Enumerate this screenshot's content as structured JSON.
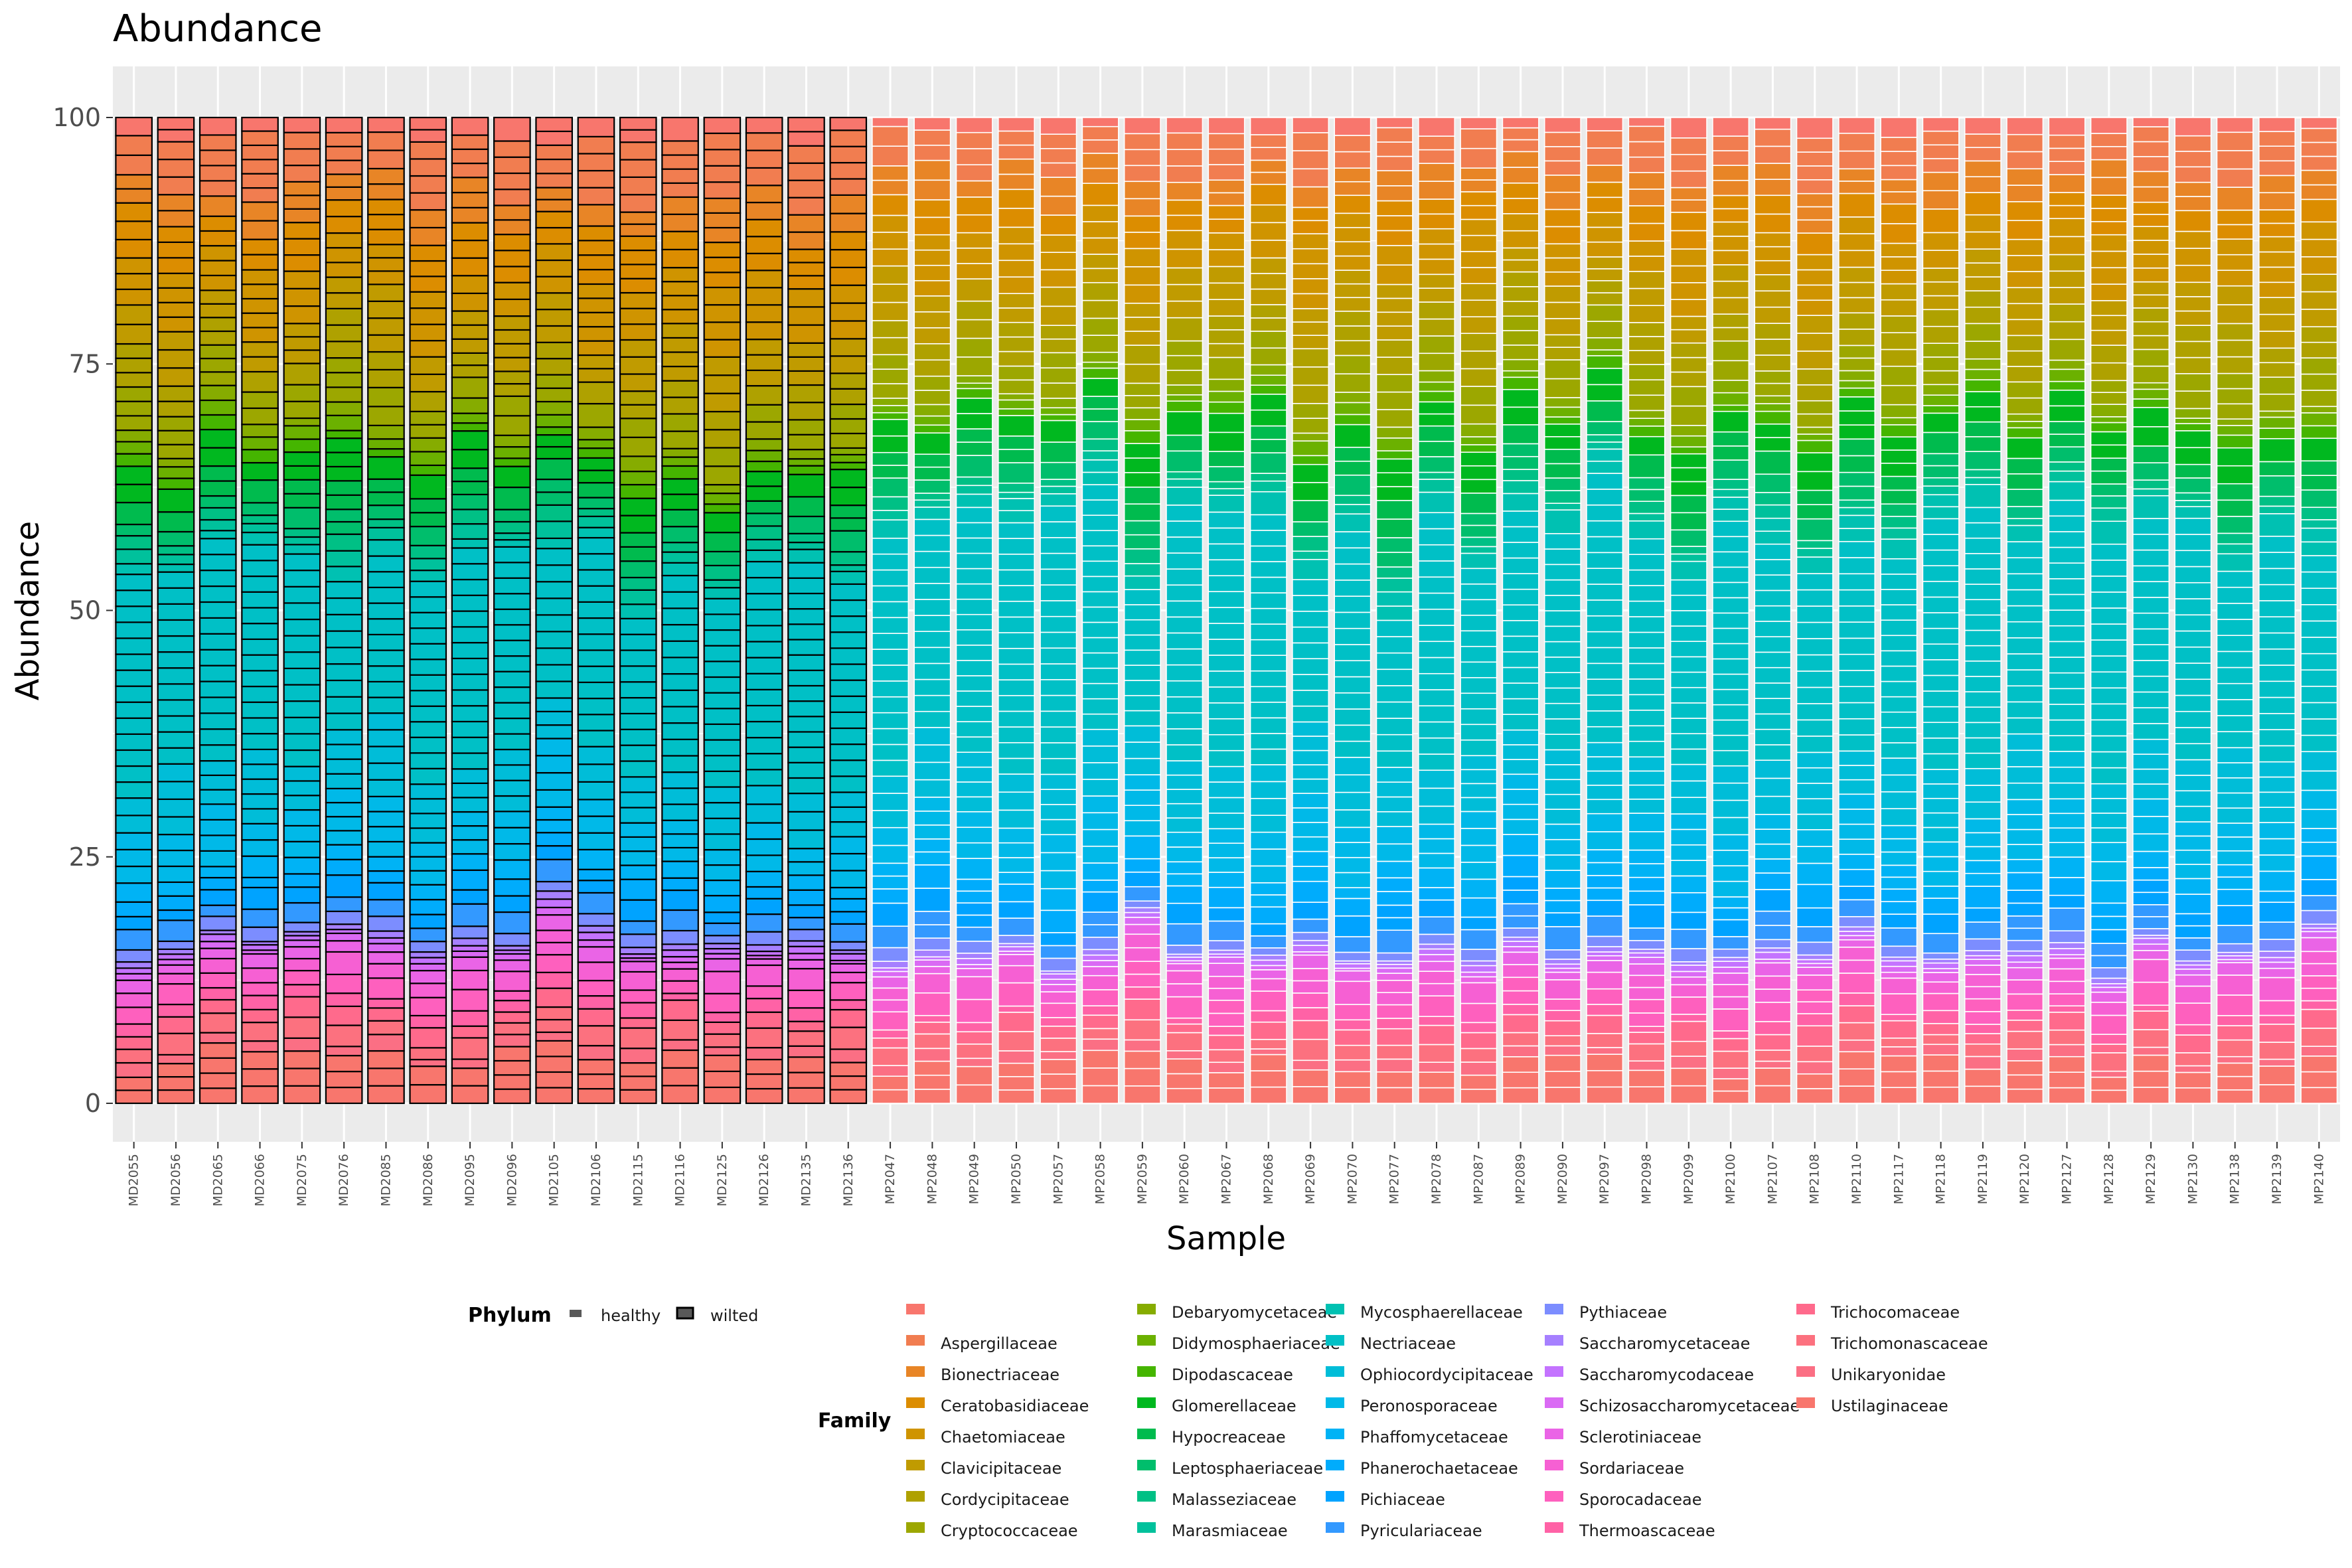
{
  "chart_data": {
    "type": "bar",
    "title": "Abundance",
    "xlabel": "Sample",
    "ylabel": "Abundance",
    "ylim": [
      0,
      100
    ],
    "yticks": [
      0,
      25,
      50,
      75,
      100
    ],
    "stacked": true,
    "grid": true,
    "legend_position": "bottom",
    "categories": [
      "MD2055",
      "MD2056",
      "MD2065",
      "MD2066",
      "MD2075",
      "MD2076",
      "MD2085",
      "MD2086",
      "MD2095",
      "MD2096",
      "MD2105",
      "MD2106",
      "MD2115",
      "MD2116",
      "MD2125",
      "MD2126",
      "MD2135",
      "MD2136",
      "MP2047",
      "MP2048",
      "MP2049",
      "MP2050",
      "MP2057",
      "MP2058",
      "MP2059",
      "MP2060",
      "MP2067",
      "MP2068",
      "MP2069",
      "MP2070",
      "MP2077",
      "MP2078",
      "MP2087",
      "MP2089",
      "MP2090",
      "MP2097",
      "MP2098",
      "MP2099",
      "MP2100",
      "MP2107",
      "MP2108",
      "MP2110",
      "MP2117",
      "MP2118",
      "MP2119",
      "MP2120",
      "MP2127",
      "MP2128",
      "MP2129",
      "MP2130",
      "MP2138",
      "MP2139",
      "MP2140"
    ],
    "phylum": [
      "wilted",
      "wilted",
      "wilted",
      "wilted",
      "wilted",
      "wilted",
      "wilted",
      "wilted",
      "wilted",
      "wilted",
      "wilted",
      "wilted",
      "wilted",
      "wilted",
      "wilted",
      "wilted",
      "wilted",
      "wilted",
      "healthy",
      "healthy",
      "healthy",
      "healthy",
      "healthy",
      "healthy",
      "healthy",
      "healthy",
      "healthy",
      "healthy",
      "healthy",
      "healthy",
      "healthy",
      "healthy",
      "healthy",
      "healthy",
      "healthy",
      "healthy",
      "healthy",
      "healthy",
      "healthy",
      "healthy",
      "healthy",
      "healthy",
      "healthy",
      "healthy",
      "healthy",
      "healthy",
      "healthy",
      "healthy",
      "healthy",
      "healthy",
      "healthy",
      "healthy",
      "healthy"
    ],
    "phylum_legend": {
      "title": "Phylum",
      "items": [
        "healthy",
        "wilted"
      ]
    },
    "family_legend": {
      "title": "Family",
      "items": [
        "",
        "Aspergillaceae",
        "Bionectriaceae",
        "Ceratobasidiaceae",
        "Chaetomiaceae",
        "Clavicipitaceae",
        "Cordycipitaceae",
        "Cryptococcaceae",
        "Debaryomycetaceae",
        "Didymosphaeriaceae",
        "Dipodascaceae",
        "Glomerellaceae",
        "Hypocreaceae",
        "Leptosphaeriaceae",
        "Malasseziaceae",
        "Marasmiaceae",
        "Mycosphaerellaceae",
        "Nectriaceae",
        "Ophiocordycipitaceae",
        "Peronosporaceae",
        "Phaffomycetaceae",
        "Phanerochaetaceae",
        "Pichiaceae",
        "Pyriculariaceae",
        "Pythiaceae",
        "Saccharomycetaceae",
        "Saccharomycodaceae",
        "Schizosaccharomycetaceae",
        "Sclerotiniaceae",
        "Sordariaceae",
        "Sporocadaceae",
        "Thermoascaceae",
        "Trichocomaceae",
        "Trichomonascaceae",
        "Unikaryonidae",
        "Ustilaginaceae"
      ],
      "colors": [
        "#F8766D",
        "#F17D50",
        "#E88526",
        "#DC8D00",
        "#CF9400",
        "#C09B00",
        "#AFA100",
        "#9CA700",
        "#86AC00",
        "#6BB100",
        "#45B500",
        "#00B81F",
        "#00BB4E",
        "#00BE6C",
        "#00C085",
        "#00C19C",
        "#00C1B2",
        "#00C0C6",
        "#00BDD8",
        "#00B9E8",
        "#00B3F5",
        "#00ACFC",
        "#00A3FF",
        "#3399FF",
        "#7C8DFF",
        "#A680FF",
        "#C473FF",
        "#DA6AF4",
        "#EA64E6",
        "#F660D3",
        "#FE60BE",
        "#FF62A6",
        "#FF6A8C",
        "#FC717F",
        "#FB6F84",
        "#F8766D"
      ]
    },
    "series_breaks": [
      0,
      2,
      3,
      4,
      5,
      6,
      7,
      11,
      12,
      13,
      14,
      15,
      16,
      17,
      18,
      19,
      20,
      21,
      22,
      23,
      24,
      25,
      26,
      27,
      28,
      29,
      30,
      31,
      32,
      33,
      34,
      35
    ],
    "profile_note": "",
    "samples_composition": {
      "family_order": [
        "Ustilaginaceae",
        "Unikaryonidae",
        "Trichomonascaceae",
        "Trichocomaceae",
        "Thermoascaceae",
        "Sporocadaceae",
        "Sordariaceae",
        "Sclerotiniaceae",
        "Schizosaccharomycetaceae",
        "Saccharomycodaceae",
        "Saccharomycetaceae",
        "Pythiaceae",
        "Pyriculariaceae",
        "Pichiaceae",
        "Phanerochaetaceae",
        "Phaffomycetaceae",
        "Peronosporaceae",
        "Ophiocordycipitaceae",
        "Nectriaceae",
        "Mycosphaerellaceae",
        "Marasmiaceae",
        "Malasseziaceae",
        "Leptosphaeriaceae",
        "Hypocreaceae",
        "Glomerellaceae",
        "Dipodascaceae",
        "Didymosphaeriaceae",
        "Debaryomycetaceae",
        "Cryptococcaceae",
        "Cordycipitaceae",
        "Clavicipitaceae",
        "Chaetomiaceae",
        "Ceratobasidiaceae",
        "Bionectriaceae",
        "Aspergillaceae",
        ""
      ],
      "wilted_profile": [
        4,
        1,
        1.5,
        1.5,
        1,
        1.5,
        1.5,
        1,
        0.5,
        0.5,
        0.5,
        1,
        1.5,
        1.5,
        1.5,
        1.5,
        4,
        5,
        18,
        1,
        1,
        1,
        1.5,
        2,
        2.5,
        1,
        1,
        1,
        3,
        3,
        4,
        5,
        4,
        3,
        5,
        2
      ],
      "healthy_profile": [
        4,
        1,
        1.5,
        1.5,
        1,
        2,
        2,
        1,
        0.5,
        0.5,
        0.5,
        1,
        2,
        2,
        2,
        2,
        5,
        6,
        21,
        2,
        1,
        1,
        2,
        2.5,
        3,
        1,
        1,
        1,
        3.5,
        4,
        4,
        5,
        3,
        3,
        4,
        1.5
      ]
    }
  }
}
